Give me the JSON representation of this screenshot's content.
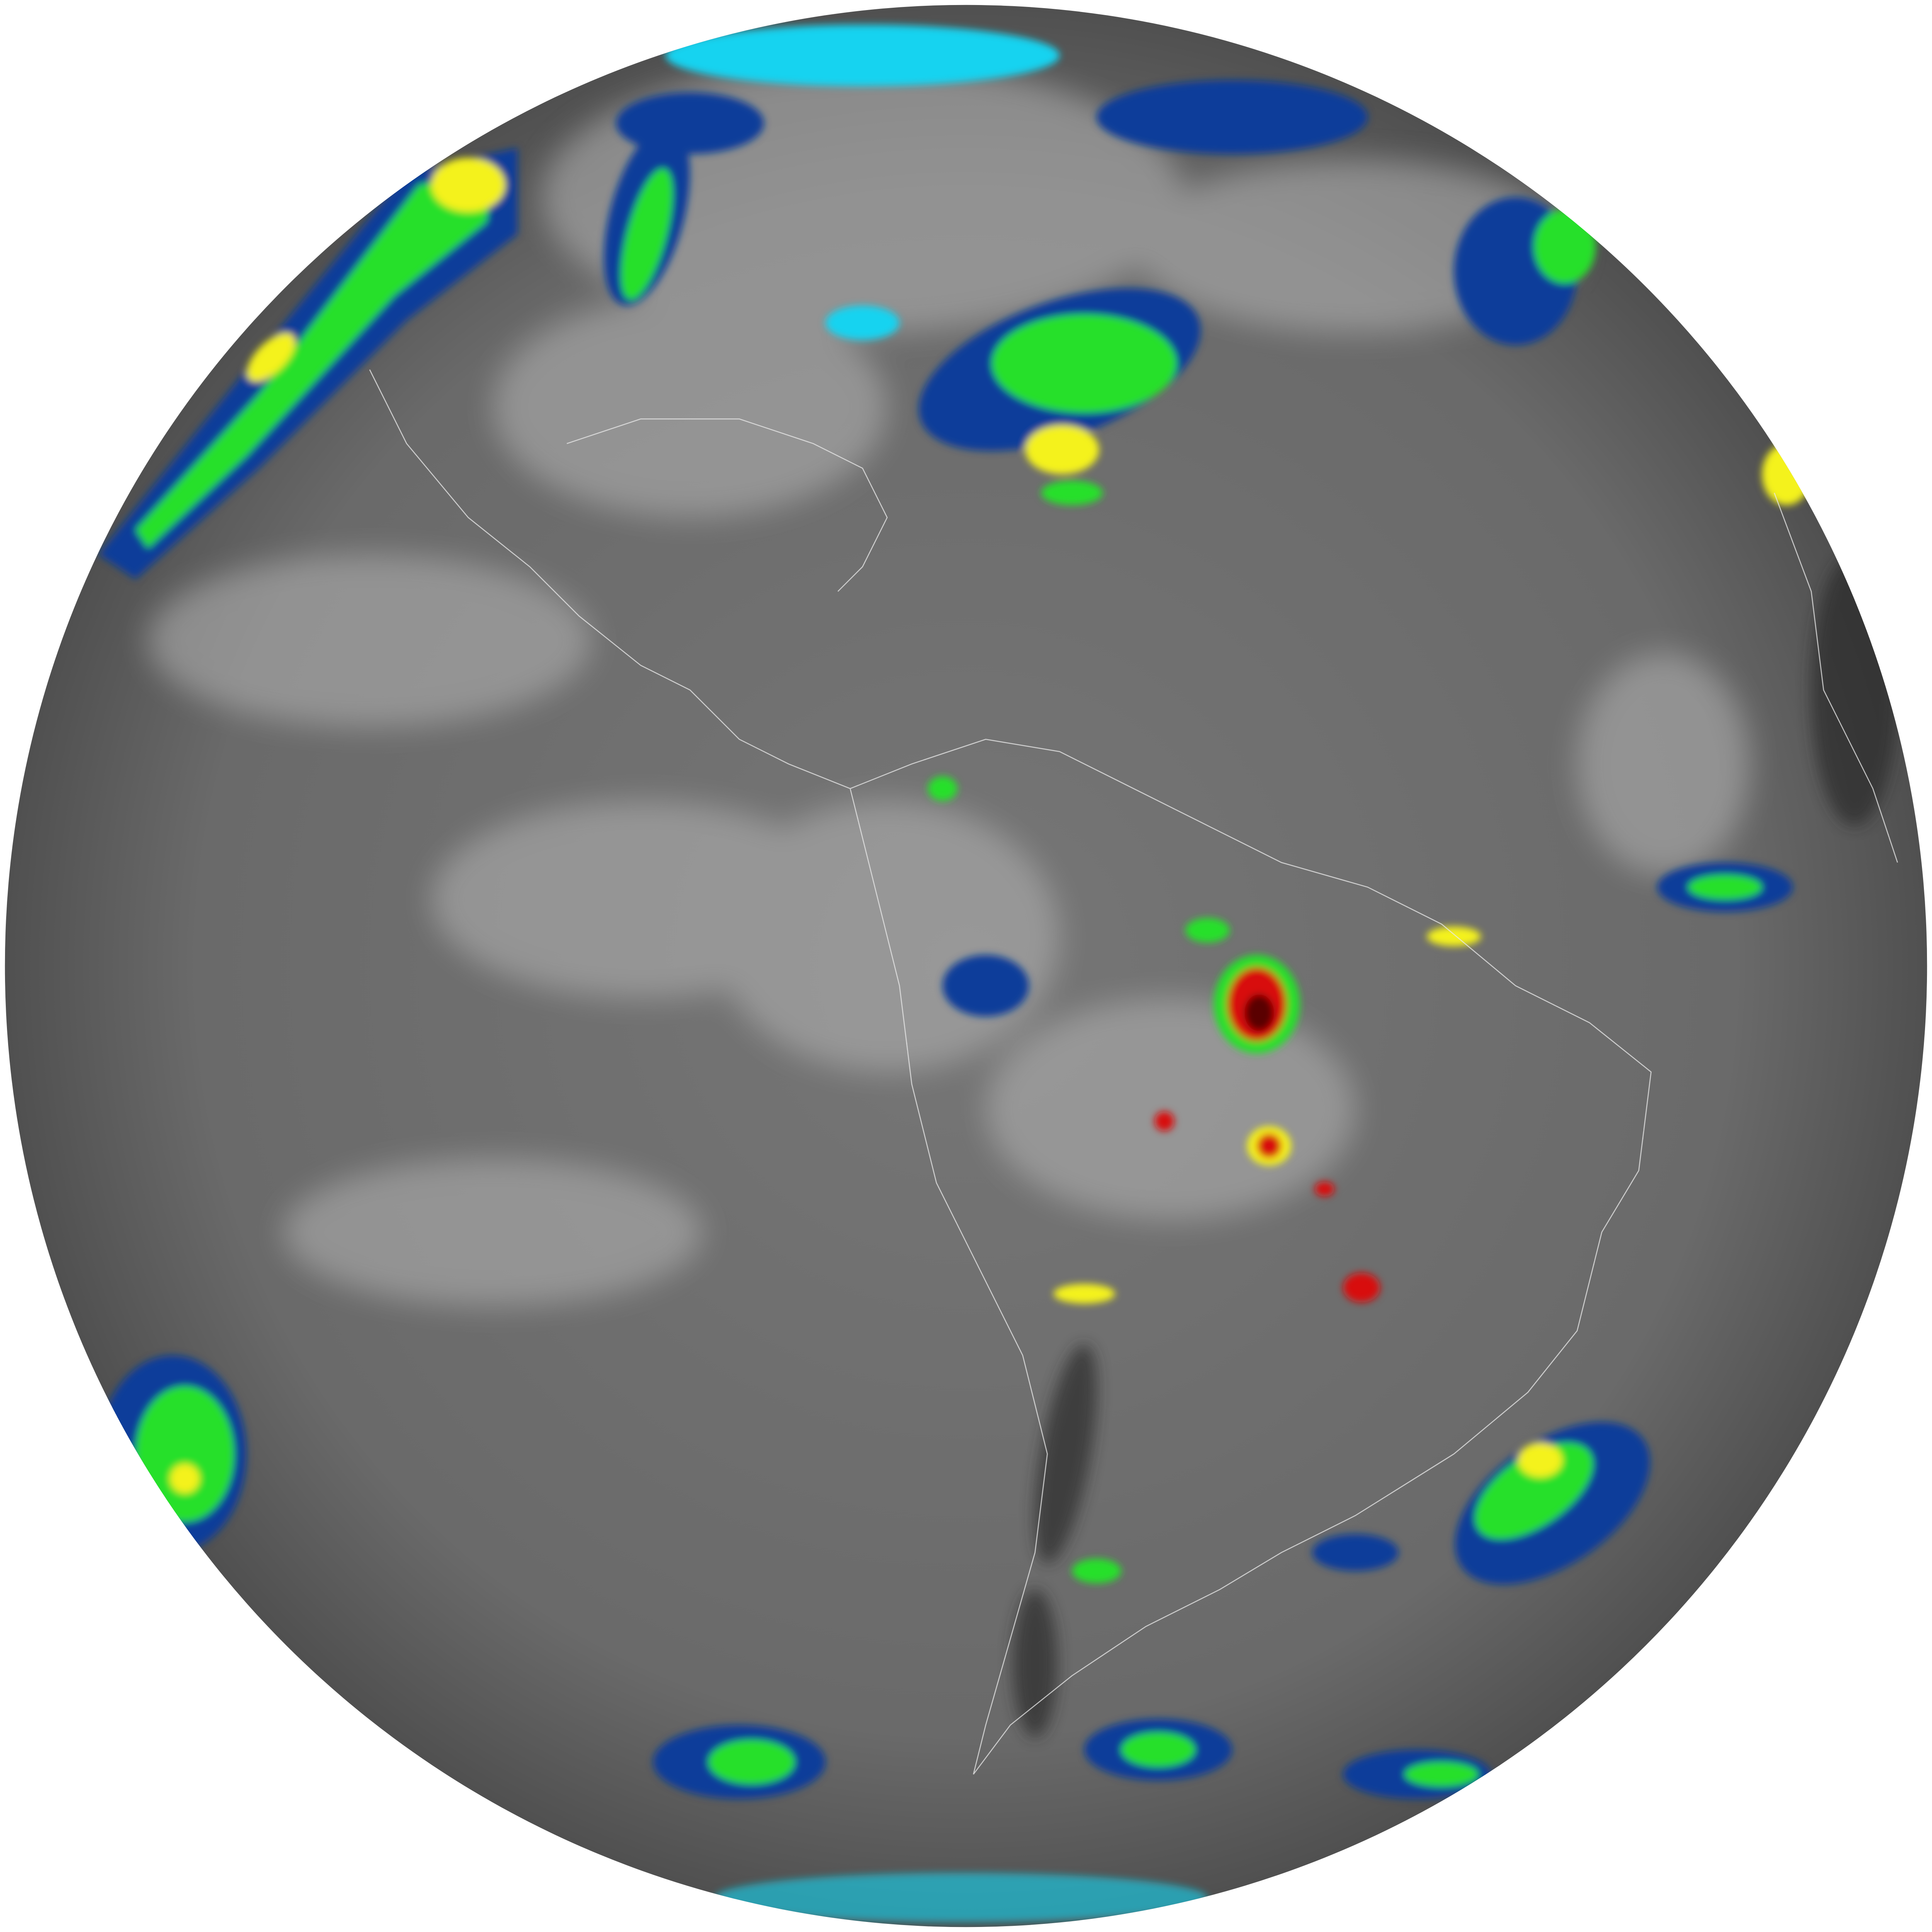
{
  "image": {
    "kind": "satellite-full-disk-infrared",
    "background_color": "#ffffff",
    "colors": {
      "disk_base": "#6e6e6e",
      "disk_edge": "#4a4a4a",
      "cloud_light": "#bdbdbd",
      "cold_cyan": "#19d3f0",
      "cold_blue": "#0a3c9a",
      "cold_green": "#27e02a",
      "cold_yellow": "#f4f21c",
      "cold_red": "#d81010",
      "cold_darkred": "#5a0505",
      "warm_dark": "#1e1e1e",
      "coastline": "#e8e8e8"
    }
  }
}
